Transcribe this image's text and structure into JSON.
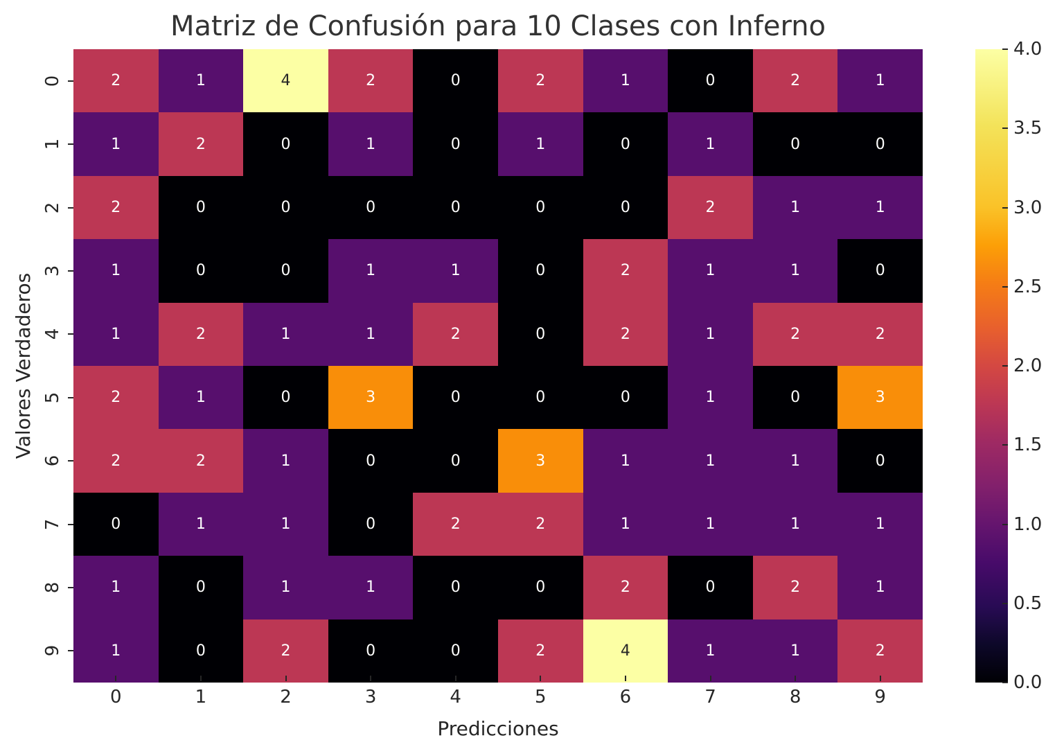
{
  "chart_data": {
    "type": "heatmap",
    "title": "Matriz de Confusión para 10 Clases con Inferno",
    "xlabel": "Predicciones",
    "ylabel": "Valores Verdaderos",
    "x_tick_labels": [
      "0",
      "1",
      "2",
      "3",
      "4",
      "5",
      "6",
      "7",
      "8",
      "9"
    ],
    "y_tick_labels": [
      "0",
      "1",
      "2",
      "3",
      "4",
      "5",
      "6",
      "7",
      "8",
      "9"
    ],
    "matrix": [
      [
        2,
        1,
        4,
        2,
        0,
        2,
        1,
        0,
        2,
        1
      ],
      [
        1,
        2,
        0,
        1,
        0,
        1,
        0,
        1,
        0,
        0
      ],
      [
        2,
        0,
        0,
        0,
        0,
        0,
        0,
        2,
        1,
        1
      ],
      [
        1,
        0,
        0,
        1,
        1,
        0,
        2,
        1,
        1,
        0
      ],
      [
        1,
        2,
        1,
        1,
        2,
        0,
        2,
        1,
        2,
        2
      ],
      [
        2,
        1,
        0,
        3,
        0,
        0,
        0,
        1,
        0,
        3
      ],
      [
        2,
        2,
        1,
        0,
        0,
        3,
        1,
        1,
        1,
        0
      ],
      [
        0,
        1,
        1,
        0,
        2,
        2,
        1,
        1,
        1,
        1
      ],
      [
        1,
        0,
        1,
        1,
        0,
        0,
        2,
        0,
        2,
        1
      ],
      [
        1,
        0,
        2,
        0,
        0,
        2,
        4,
        1,
        1,
        2
      ]
    ],
    "colormap": "inferno",
    "annotated": true,
    "colorbar": {
      "range": [
        0.0,
        4.0
      ],
      "ticks": [
        "0.0",
        "0.5",
        "1.0",
        "1.5",
        "2.0",
        "2.5",
        "3.0",
        "3.5",
        "4.0"
      ],
      "position": "right"
    },
    "value_colors": {
      "0": "#000004",
      "1": "#570f6d",
      "2": "#bc3754",
      "3": "#f98e09",
      "4": "#fcffa4"
    }
  }
}
